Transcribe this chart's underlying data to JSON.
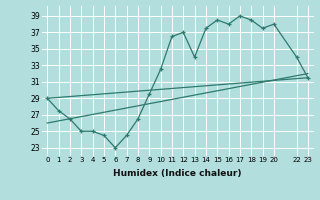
{
  "xlabel": "Humidex (Indice chaleur)",
  "background_color": "#b2dede",
  "grid_color": "#ffffff",
  "line_color": "#2d7a6e",
  "xlim": [
    -0.5,
    23.5
  ],
  "ylim": [
    22.0,
    40.2
  ],
  "yticks": [
    23,
    25,
    27,
    29,
    31,
    33,
    35,
    37,
    39
  ],
  "xticks": [
    0,
    1,
    2,
    3,
    4,
    5,
    6,
    7,
    8,
    9,
    10,
    11,
    12,
    13,
    14,
    15,
    16,
    17,
    18,
    19,
    20,
    22,
    23
  ],
  "xticklabels": [
    "0",
    "1",
    "2",
    "3",
    "4",
    "5",
    "6",
    "7",
    "8",
    "9",
    "10",
    "11",
    "12",
    "13",
    "14",
    "15",
    "16",
    "17",
    "18",
    "19",
    "20",
    "22",
    "23"
  ],
  "upper_line": [
    [
      0,
      29
    ],
    [
      1,
      27.5
    ],
    [
      2,
      26.5
    ],
    [
      3,
      25
    ],
    [
      4,
      25
    ],
    [
      5,
      24.5
    ],
    [
      6,
      23
    ],
    [
      7,
      24.5
    ],
    [
      8,
      26.5
    ],
    [
      9,
      29.5
    ],
    [
      10,
      32.5
    ],
    [
      11,
      36.5
    ],
    [
      12,
      37
    ],
    [
      13,
      34
    ],
    [
      14,
      37.5
    ],
    [
      15,
      38.5
    ],
    [
      16,
      38
    ],
    [
      17,
      39
    ],
    [
      18,
      38.5
    ],
    [
      19,
      37.5
    ],
    [
      20,
      38
    ],
    [
      22,
      34
    ],
    [
      23,
      31.5
    ]
  ],
  "line2": [
    [
      0,
      29
    ],
    [
      23,
      31.5
    ]
  ],
  "line3": [
    [
      0,
      26
    ],
    [
      23,
      32
    ]
  ]
}
